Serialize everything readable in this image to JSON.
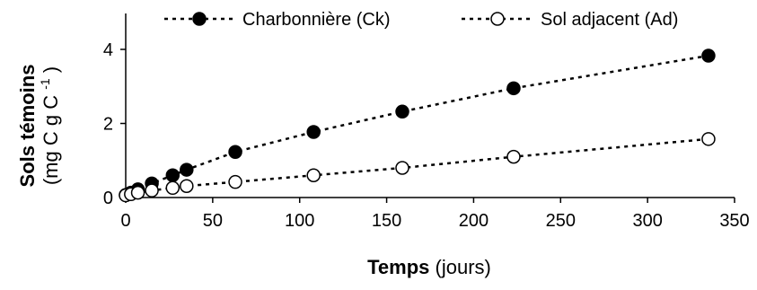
{
  "chart_data": {
    "type": "scatter",
    "title": "",
    "xlabel": {
      "bold": "Temps",
      "normal": "(jours)"
    },
    "ylabel": {
      "line1": "Sols témoins",
      "line2": "(mg C g C",
      "sup": "-1",
      "close": ")"
    },
    "xlim": [
      0,
      350
    ],
    "ylim": [
      0,
      4
    ],
    "x_ticks": [
      0,
      50,
      100,
      150,
      200,
      250,
      300,
      350
    ],
    "y_ticks": [
      0,
      2,
      4
    ],
    "grid": false,
    "legend_position": "top",
    "series": [
      {
        "name": "Charbonnière (Ck)",
        "marker": "filled-circle",
        "x": [
          0,
          3,
          7,
          15,
          27,
          35,
          63,
          108,
          159,
          223,
          335
        ],
        "y": [
          0.07,
          0.13,
          0.22,
          0.38,
          0.6,
          0.75,
          1.23,
          1.77,
          2.32,
          2.95,
          3.83
        ]
      },
      {
        "name": "Sol adjacent (Ad)",
        "marker": "open-circle",
        "x": [
          0,
          3,
          7,
          15,
          27,
          35,
          63,
          108,
          159,
          223,
          335
        ],
        "y": [
          0.06,
          0.09,
          0.13,
          0.19,
          0.26,
          0.31,
          0.42,
          0.6,
          0.8,
          1.1,
          1.58
        ]
      }
    ]
  }
}
